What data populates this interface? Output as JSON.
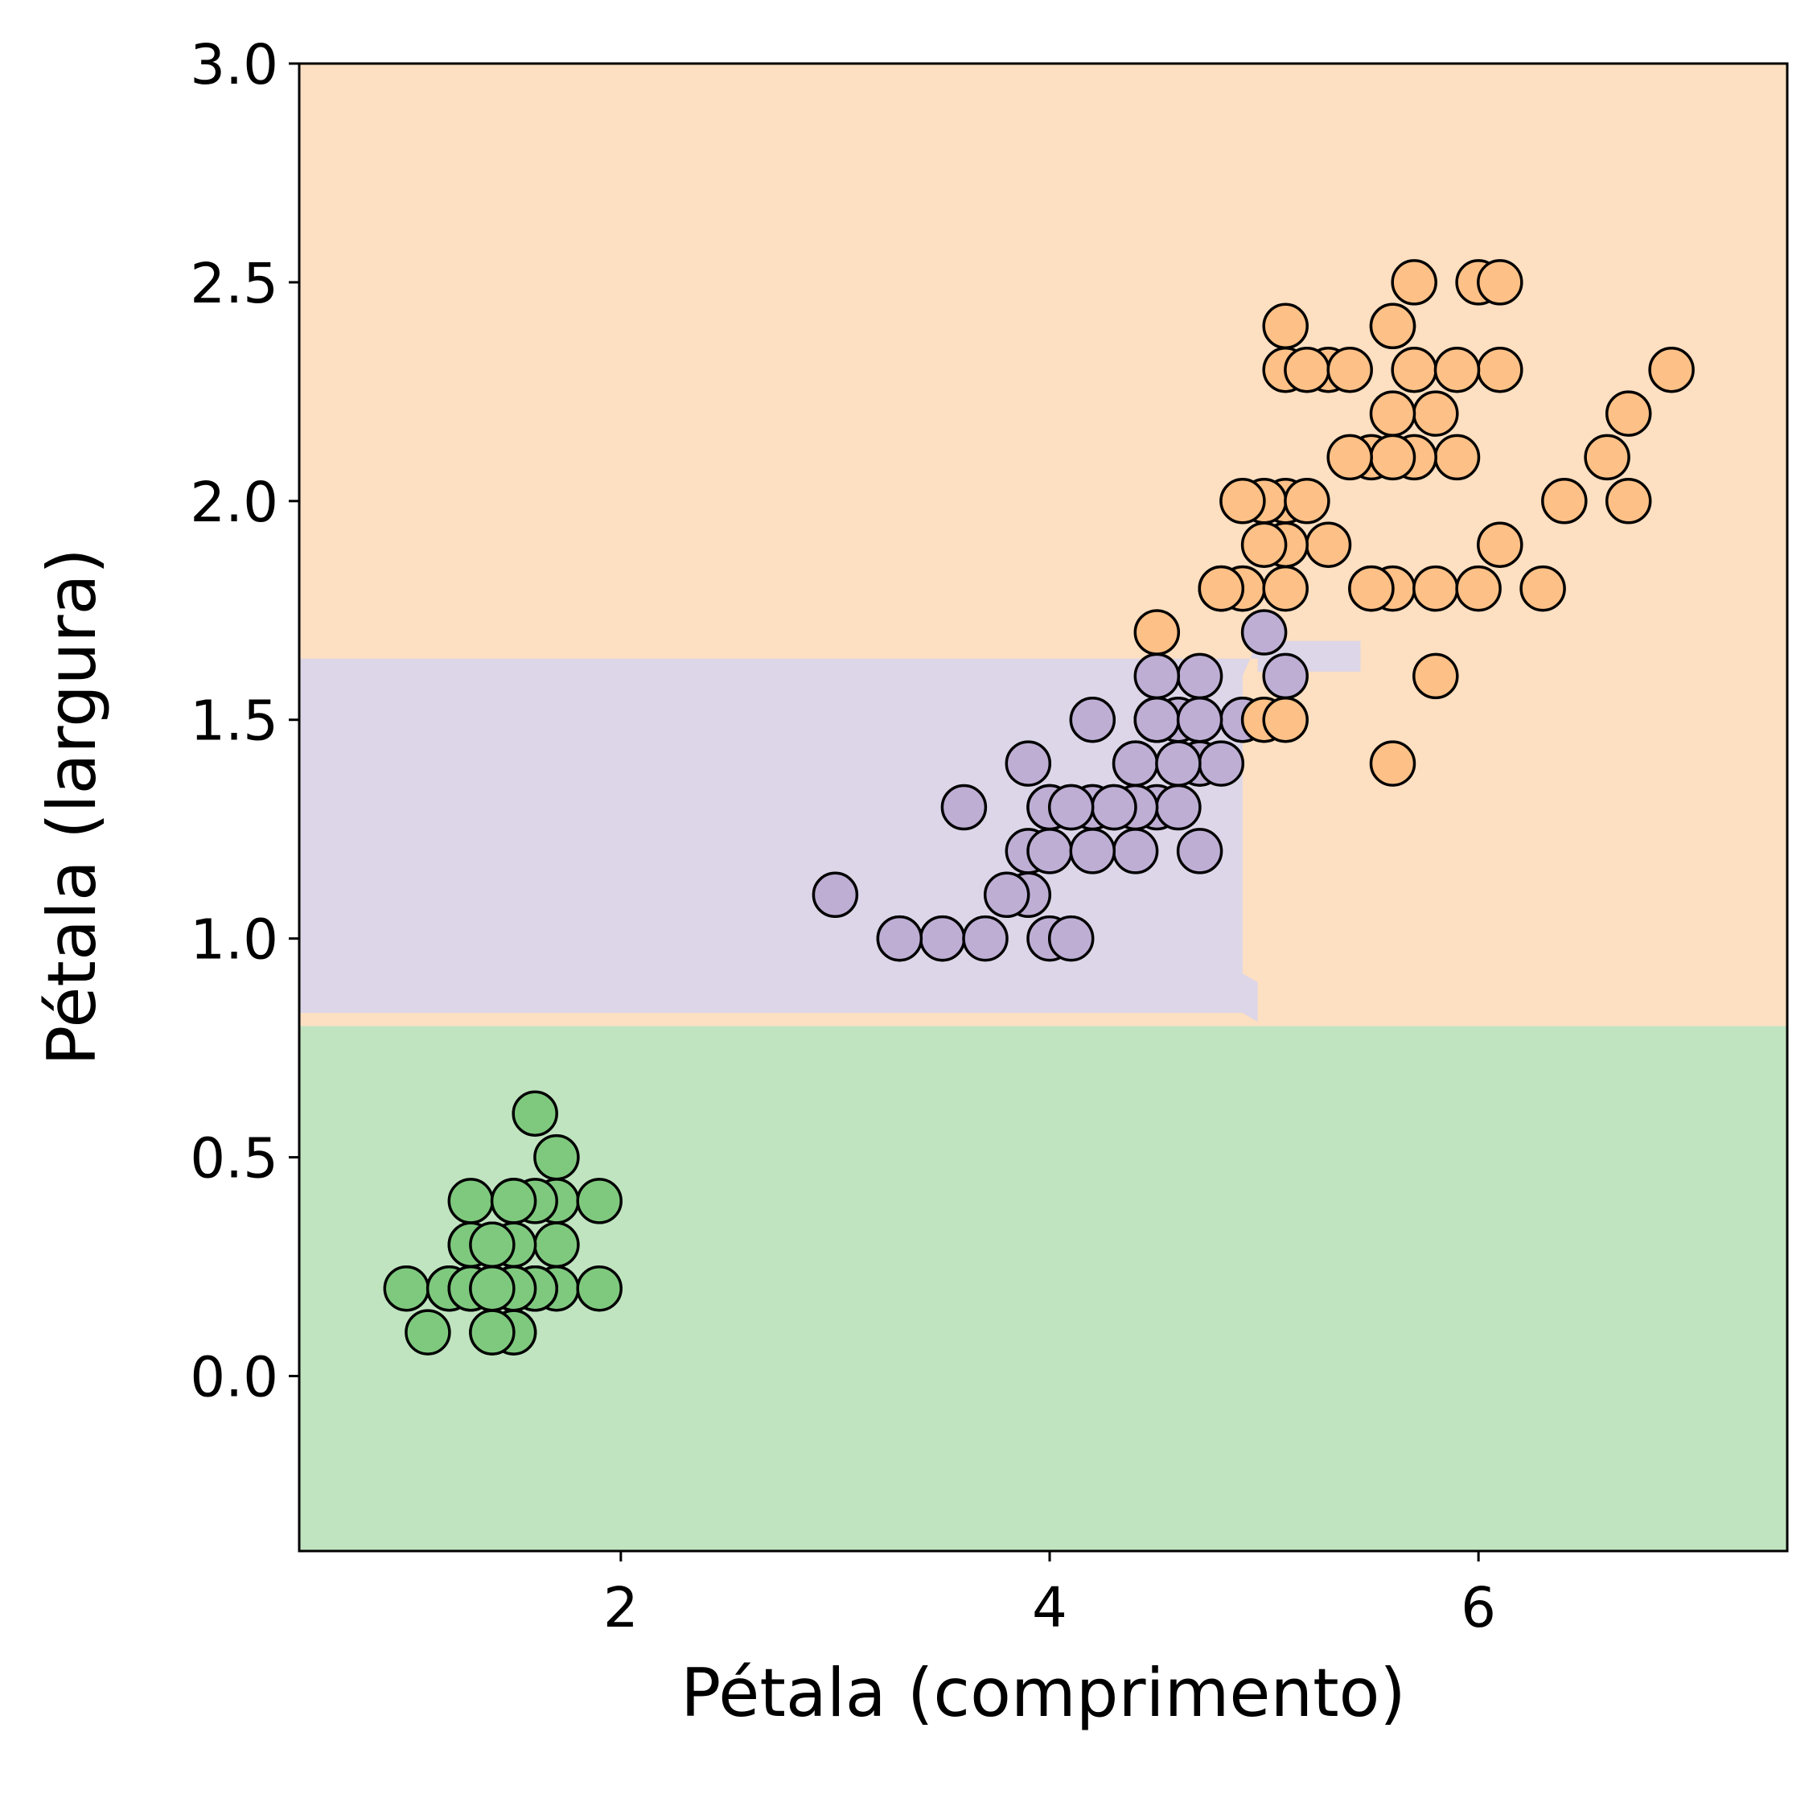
{
  "chart_data": {
    "type": "scatter",
    "title": "",
    "xlabel": "Pétala (comprimento)",
    "ylabel": "Pétala (largura)",
    "xlim": [
      0.5,
      7.44
    ],
    "ylim": [
      -0.4,
      3.0
    ],
    "x_ticks": [
      2,
      4,
      6
    ],
    "x_tick_labels": [
      "2",
      "4",
      "6"
    ],
    "y_ticks": [
      0.0,
      0.5,
      1.0,
      1.5,
      2.0,
      2.5,
      3.0
    ],
    "y_tick_labels": [
      "0.0",
      "0.5",
      "1.0",
      "1.5",
      "2.0",
      "2.5",
      "3.0"
    ],
    "grid": false,
    "legend": "none",
    "decision_regions": [
      {
        "class": 0,
        "color": "#c0e4c0",
        "description": "petal width < 0.8"
      },
      {
        "class": 1,
        "color": "#ddd6e8",
        "description": "0.8 <= petal width < 1.65 and petal length < 4.95; small extension near width 1.6-1.7 up to length ~5.45"
      },
      {
        "class": 2,
        "color": "#fddfc1",
        "description": "petal width >= 1.65, or petal width >= 0.8 and petal length >= 4.95"
      }
    ],
    "series": [
      {
        "color": "#7fc97f",
        "points": [
          [
            1.4,
            0.2
          ],
          [
            1.4,
            0.2
          ],
          [
            1.3,
            0.2
          ],
          [
            1.5,
            0.2
          ],
          [
            1.4,
            0.2
          ],
          [
            1.7,
            0.4
          ],
          [
            1.4,
            0.3
          ],
          [
            1.5,
            0.2
          ],
          [
            1.4,
            0.2
          ],
          [
            1.5,
            0.1
          ],
          [
            1.5,
            0.2
          ],
          [
            1.6,
            0.2
          ],
          [
            1.4,
            0.1
          ],
          [
            1.1,
            0.1
          ],
          [
            1.2,
            0.2
          ],
          [
            1.5,
            0.4
          ],
          [
            1.3,
            0.4
          ],
          [
            1.4,
            0.3
          ],
          [
            1.7,
            0.3
          ],
          [
            1.5,
            0.3
          ],
          [
            1.7,
            0.2
          ],
          [
            1.5,
            0.4
          ],
          [
            1.0,
            0.2
          ],
          [
            1.7,
            0.5
          ],
          [
            1.9,
            0.2
          ],
          [
            1.6,
            0.2
          ],
          [
            1.6,
            0.4
          ],
          [
            1.5,
            0.2
          ],
          [
            1.4,
            0.2
          ],
          [
            1.6,
            0.2
          ],
          [
            1.6,
            0.2
          ],
          [
            1.5,
            0.4
          ],
          [
            1.5,
            0.1
          ],
          [
            1.4,
            0.2
          ],
          [
            1.5,
            0.2
          ],
          [
            1.2,
            0.2
          ],
          [
            1.3,
            0.2
          ],
          [
            1.4,
            0.1
          ],
          [
            1.3,
            0.2
          ],
          [
            1.5,
            0.2
          ],
          [
            1.3,
            0.3
          ],
          [
            1.3,
            0.3
          ],
          [
            1.3,
            0.2
          ],
          [
            1.6,
            0.6
          ],
          [
            1.9,
            0.4
          ],
          [
            1.4,
            0.3
          ],
          [
            1.6,
            0.2
          ],
          [
            1.4,
            0.2
          ],
          [
            1.5,
            0.2
          ],
          [
            1.4,
            0.2
          ]
        ]
      },
      {
        "color": "#beaed4",
        "points": [
          [
            4.7,
            1.4
          ],
          [
            4.5,
            1.5
          ],
          [
            4.9,
            1.5
          ],
          [
            4.0,
            1.3
          ],
          [
            4.6,
            1.5
          ],
          [
            4.5,
            1.3
          ],
          [
            4.7,
            1.6
          ],
          [
            3.3,
            1.0
          ],
          [
            4.6,
            1.3
          ],
          [
            3.9,
            1.4
          ],
          [
            3.5,
            1.0
          ],
          [
            4.2,
            1.5
          ],
          [
            4.0,
            1.0
          ],
          [
            4.7,
            1.4
          ],
          [
            3.6,
            1.3
          ],
          [
            4.4,
            1.4
          ],
          [
            4.5,
            1.5
          ],
          [
            4.1,
            1.0
          ],
          [
            4.5,
            1.5
          ],
          [
            3.9,
            1.1
          ],
          [
            4.8,
            1.8
          ],
          [
            4.0,
            1.3
          ],
          [
            4.9,
            1.5
          ],
          [
            4.7,
            1.2
          ],
          [
            4.3,
            1.3
          ],
          [
            4.4,
            1.4
          ],
          [
            4.8,
            1.4
          ],
          [
            5.0,
            1.7
          ],
          [
            4.5,
            1.5
          ],
          [
            3.5,
            1.0
          ],
          [
            3.8,
            1.1
          ],
          [
            3.7,
            1.0
          ],
          [
            3.9,
            1.2
          ],
          [
            5.1,
            1.6
          ],
          [
            4.5,
            1.5
          ],
          [
            4.5,
            1.6
          ],
          [
            4.7,
            1.5
          ],
          [
            4.4,
            1.3
          ],
          [
            4.1,
            1.3
          ],
          [
            4.0,
            1.3
          ],
          [
            4.4,
            1.2
          ],
          [
            4.6,
            1.4
          ],
          [
            4.0,
            1.2
          ],
          [
            3.3,
            1.0
          ],
          [
            4.2,
            1.3
          ],
          [
            4.2,
            1.2
          ],
          [
            4.2,
            1.3
          ],
          [
            4.3,
            1.3
          ],
          [
            3.0,
            1.1
          ],
          [
            4.1,
            1.3
          ]
        ]
      },
      {
        "color": "#fdc086",
        "points": [
          [
            6.0,
            2.5
          ],
          [
            5.1,
            1.9
          ],
          [
            5.9,
            2.1
          ],
          [
            5.6,
            1.8
          ],
          [
            5.8,
            2.2
          ],
          [
            6.6,
            2.1
          ],
          [
            4.5,
            1.7
          ],
          [
            6.3,
            1.8
          ],
          [
            5.8,
            1.8
          ],
          [
            6.1,
            2.5
          ],
          [
            5.1,
            2.0
          ],
          [
            5.3,
            1.9
          ],
          [
            5.5,
            2.1
          ],
          [
            5.0,
            2.0
          ],
          [
            5.1,
            2.4
          ],
          [
            5.3,
            2.3
          ],
          [
            5.5,
            1.8
          ],
          [
            6.7,
            2.2
          ],
          [
            6.9,
            2.3
          ],
          [
            5.0,
            1.5
          ],
          [
            5.7,
            2.3
          ],
          [
            4.9,
            2.0
          ],
          [
            6.7,
            2.0
          ],
          [
            4.9,
            1.8
          ],
          [
            5.7,
            2.1
          ],
          [
            6.0,
            1.8
          ],
          [
            4.8,
            1.8
          ],
          [
            4.9,
            1.8
          ],
          [
            5.6,
            2.1
          ],
          [
            5.8,
            1.6
          ],
          [
            6.1,
            1.9
          ],
          [
            6.4,
            2.0
          ],
          [
            5.6,
            2.2
          ],
          [
            5.1,
            1.5
          ],
          [
            5.6,
            1.4
          ],
          [
            6.1,
            2.3
          ],
          [
            5.6,
            2.4
          ],
          [
            5.5,
            1.8
          ],
          [
            4.8,
            1.8
          ],
          [
            5.4,
            2.1
          ],
          [
            5.6,
            2.4
          ],
          [
            5.1,
            2.3
          ],
          [
            5.1,
            1.9
          ],
          [
            5.9,
            2.3
          ],
          [
            5.7,
            2.5
          ],
          [
            5.2,
            2.3
          ],
          [
            5.0,
            1.9
          ],
          [
            5.2,
            2.0
          ],
          [
            5.4,
            2.3
          ],
          [
            5.1,
            1.8
          ]
        ]
      }
    ]
  }
}
